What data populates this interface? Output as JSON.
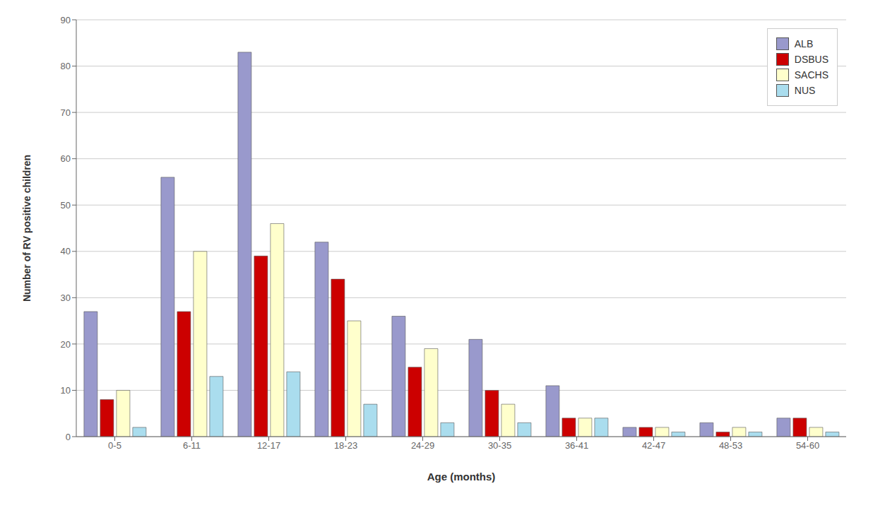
{
  "chart_data": {
    "type": "bar",
    "categories": [
      "0-5",
      "6-11",
      "12-17",
      "18-23",
      "24-29",
      "30-35",
      "36-41",
      "42-47",
      "48-53",
      "54-60"
    ],
    "series": [
      {
        "name": "ALB",
        "color": "#9999cc",
        "values": [
          27,
          56,
          83,
          42,
          26,
          21,
          11,
          2,
          3,
          4
        ]
      },
      {
        "name": "DSBUS",
        "color": "#cc0000",
        "values": [
          8,
          27,
          39,
          34,
          15,
          10,
          4,
          2,
          1,
          4
        ]
      },
      {
        "name": "SACHS",
        "color": "#ffffcc",
        "values": [
          10,
          40,
          46,
          25,
          19,
          7,
          4,
          2,
          2,
          2
        ]
      },
      {
        "name": "NUS",
        "color": "#aaddee",
        "values": [
          2,
          13,
          14,
          7,
          3,
          3,
          4,
          1,
          1,
          1
        ]
      }
    ],
    "xlabel": "Age (months)",
    "ylabel": "Number of RV positive children",
    "ylim": [
      0,
      90
    ],
    "yticks": [
      0,
      10,
      20,
      30,
      40,
      50,
      60,
      70,
      80,
      90
    ],
    "grid": true,
    "legend": "upper right"
  }
}
